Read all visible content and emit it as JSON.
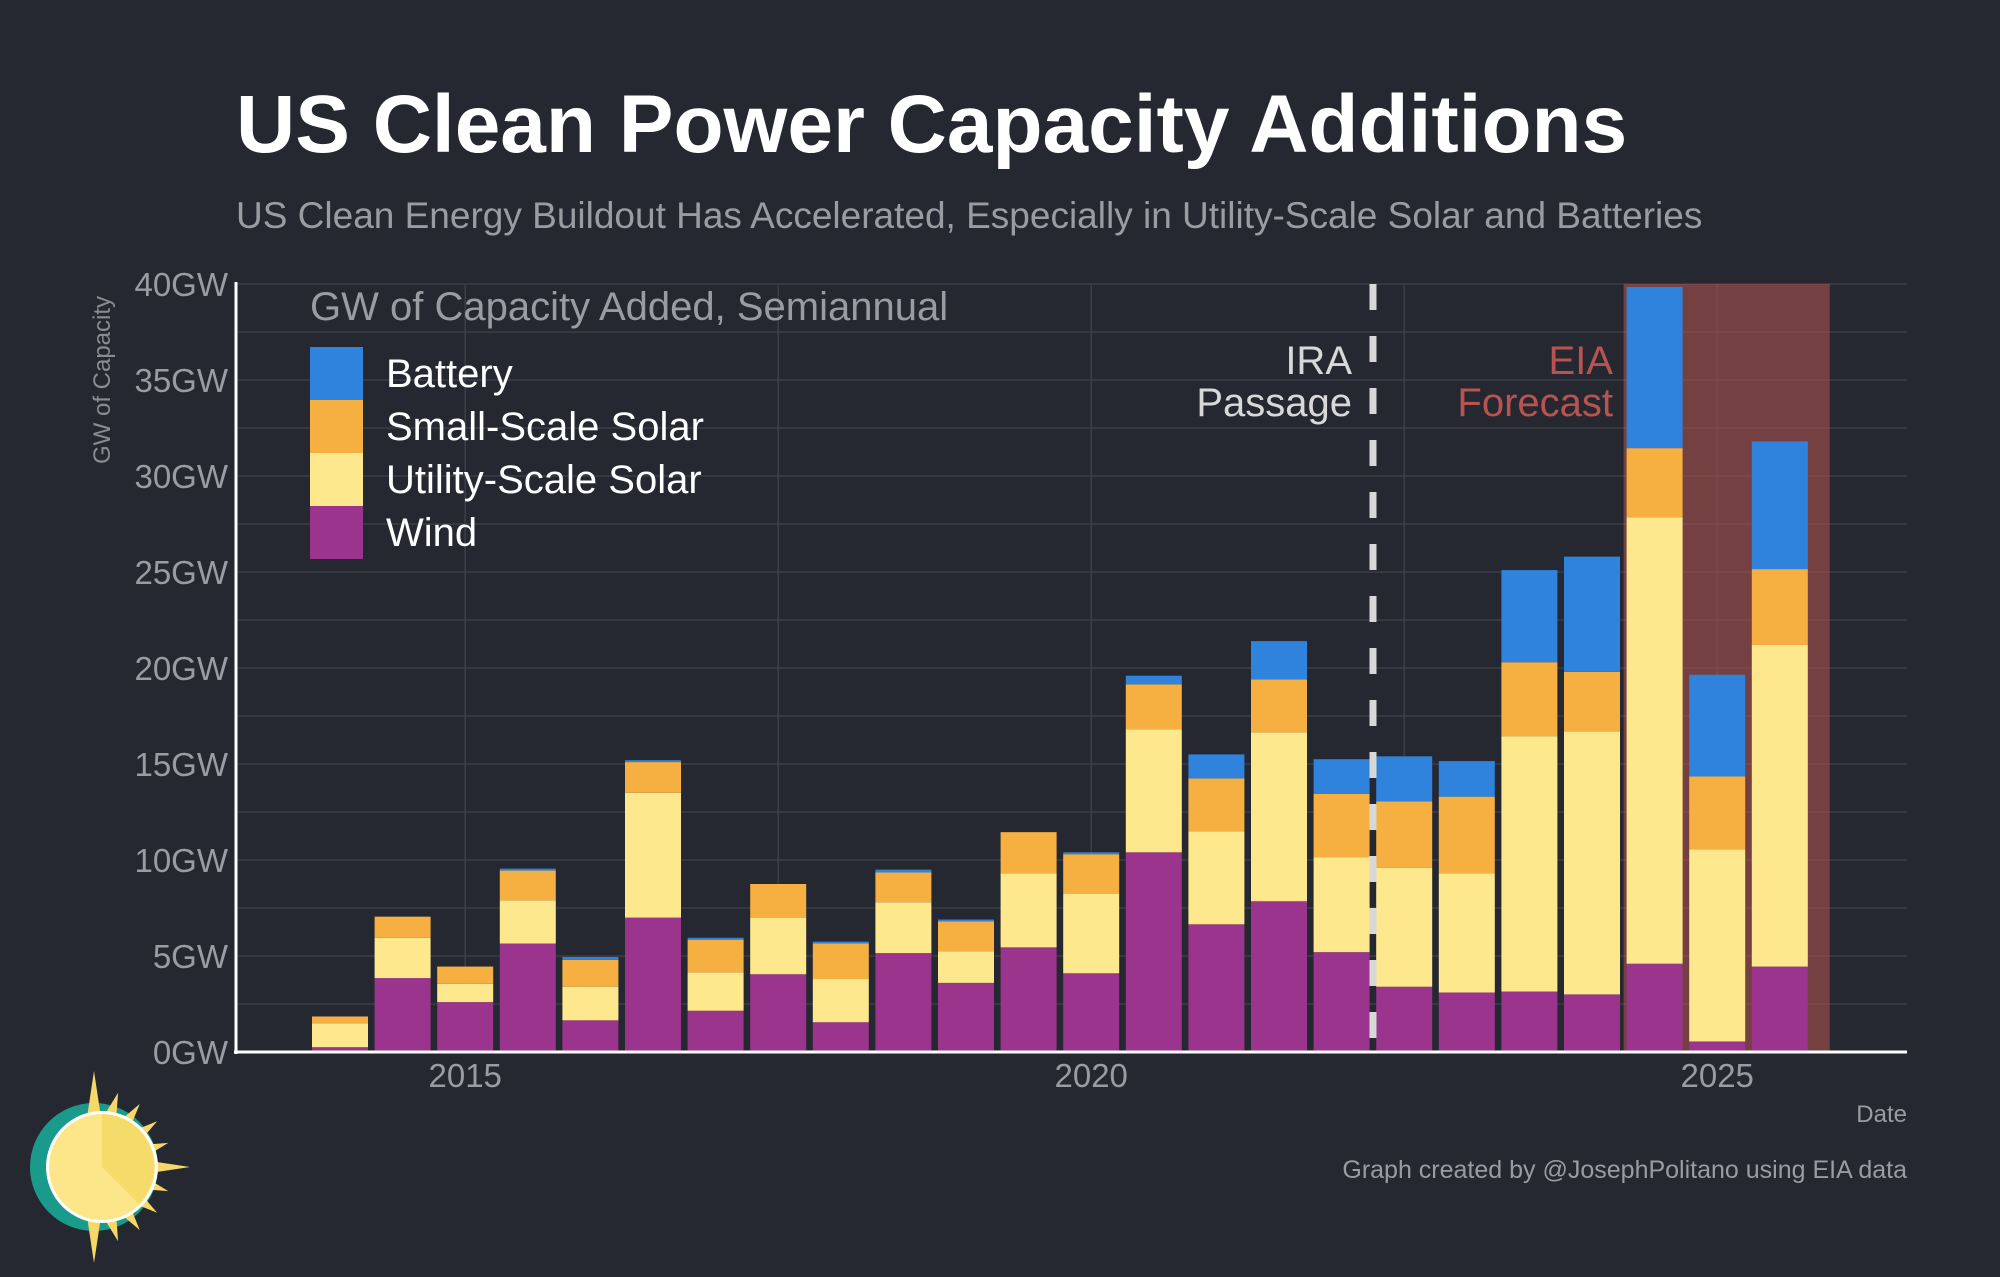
{
  "header": {
    "title": "US Clean Power Capacity Additions",
    "subtitle": "US Clean Energy Buildout Has Accelerated, Especially in Utility-Scale Solar and Batteries"
  },
  "footer": {
    "credit": "Graph created by @JosephPolitano using EIA data",
    "logo": "sun-logo-icon"
  },
  "chart_data": {
    "type": "bar",
    "stacked": true,
    "title": "US Clean Power Capacity Additions",
    "subtitle": "US Clean Energy Buildout Has Accelerated, Especially in Utility-Scale Solar and Batteries",
    "inner_title": "GW of Capacity Added, Semiannual",
    "xlabel": "Date",
    "ylabel": "GW of Capacity",
    "ylim": [
      0,
      40
    ],
    "yticks": [
      0,
      5,
      10,
      15,
      20,
      25,
      30,
      35,
      40
    ],
    "ytick_labels": [
      "0GW",
      "5GW",
      "10GW",
      "15GW",
      "20GW",
      "25GW",
      "30GW",
      "35GW",
      "40GW"
    ],
    "xlim": [
      "2013-07",
      "2026-12"
    ],
    "xticks": [
      "2015",
      "2020",
      "2025"
    ],
    "grid": true,
    "legend_position": "top-left",
    "categories": [
      "2014H1",
      "2014H2",
      "2015H1",
      "2015H2",
      "2016H1",
      "2016H2",
      "2017H1",
      "2017H2",
      "2018H1",
      "2018H2",
      "2019H1",
      "2019H2",
      "2020H1",
      "2020H2",
      "2021H1",
      "2021H2",
      "2022H1",
      "2022H2",
      "2023H1",
      "2023H2",
      "2024H1",
      "2024H2",
      "2025H1",
      "2025H2"
    ],
    "series": [
      {
        "name": "Wind",
        "color": "#9b348c",
        "values": [
          0.25,
          3.85,
          2.6,
          5.65,
          1.65,
          7.0,
          2.15,
          4.05,
          1.55,
          5.15,
          3.6,
          5.45,
          4.1,
          10.4,
          6.65,
          7.85,
          5.2,
          3.4,
          3.1,
          3.15,
          3.0,
          4.6,
          0.55,
          4.45
        ]
      },
      {
        "name": "Utility-Scale Solar",
        "color": "#fee88e",
        "values": [
          1.25,
          2.1,
          0.95,
          2.25,
          1.75,
          6.5,
          2.0,
          2.95,
          2.25,
          2.65,
          1.65,
          3.85,
          4.15,
          6.4,
          4.85,
          8.8,
          4.95,
          6.2,
          6.2,
          13.3,
          13.7,
          23.25,
          10.0,
          16.75
        ]
      },
      {
        "name": "Small-Scale Solar",
        "color": "#f5b041",
        "values": [
          0.35,
          1.1,
          0.9,
          1.55,
          1.4,
          1.6,
          1.7,
          1.75,
          1.85,
          1.55,
          1.55,
          2.15,
          2.05,
          2.35,
          2.75,
          2.75,
          3.3,
          3.45,
          4.0,
          3.85,
          3.1,
          3.6,
          3.8,
          3.95
        ]
      },
      {
        "name": "Battery",
        "color": "#3083dc",
        "values": [
          0.0,
          0.0,
          0.0,
          0.1,
          0.15,
          0.1,
          0.1,
          0.0,
          0.1,
          0.15,
          0.1,
          0.0,
          0.1,
          0.45,
          1.25,
          2.0,
          1.8,
          2.35,
          1.85,
          4.8,
          6.0,
          8.4,
          5.3,
          6.65
        ]
      }
    ],
    "annotations": [
      {
        "type": "vline",
        "at": "2022-08",
        "style": "dashed",
        "label": [
          "IRA",
          "Passage"
        ],
        "color": "#d8d8d8"
      },
      {
        "type": "shaded_region",
        "from": "2024H2",
        "to": "2025H2",
        "label": [
          "EIA",
          "Forecast"
        ],
        "color": "#b85450"
      }
    ]
  }
}
